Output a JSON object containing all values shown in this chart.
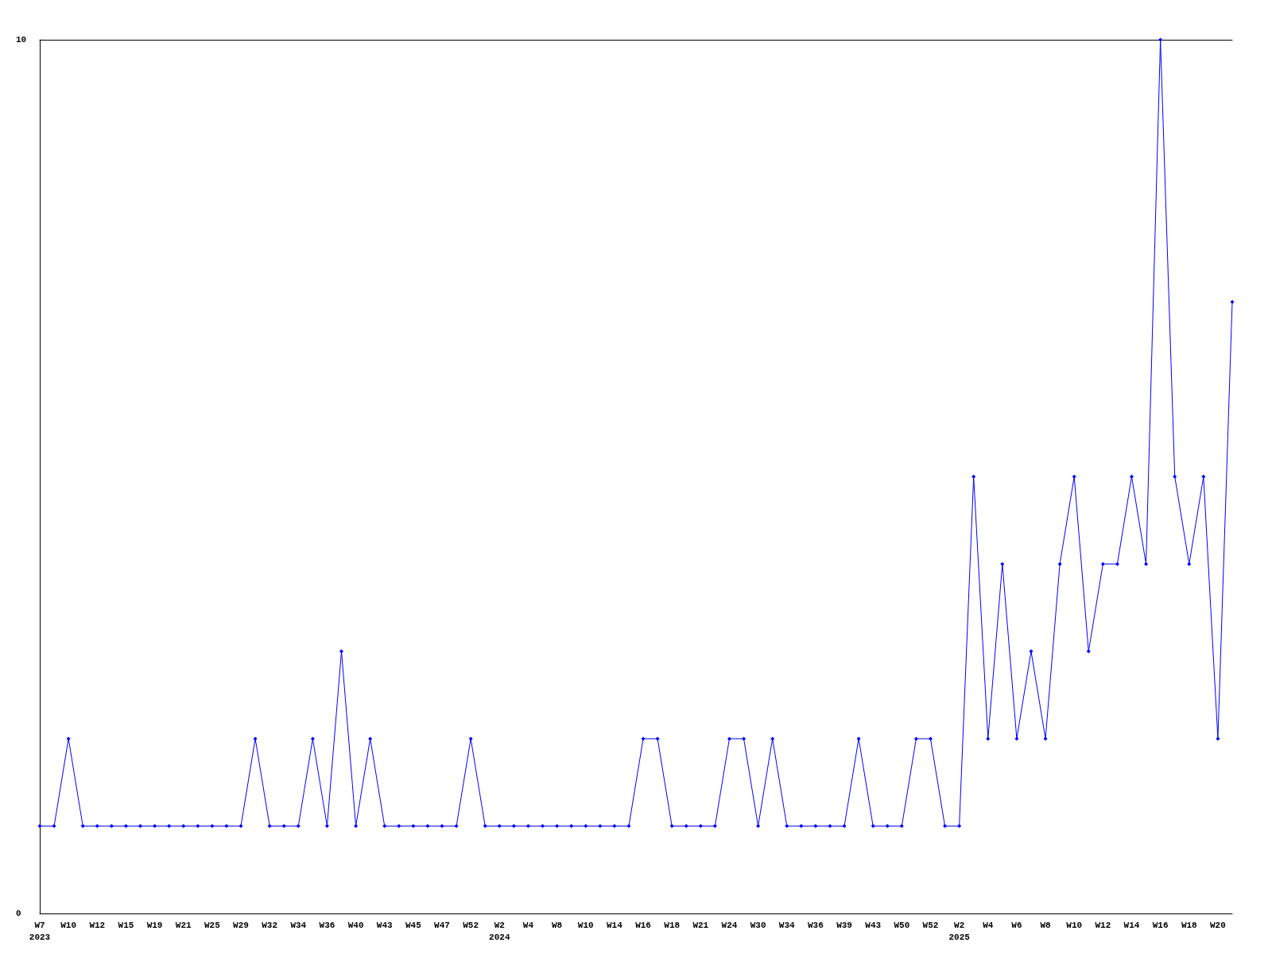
{
  "chart_data": {
    "type": "line",
    "categories": [
      "W7\n2023",
      null,
      "W10",
      null,
      "W12",
      null,
      "W15",
      null,
      "W19",
      null,
      "W21",
      null,
      "W25",
      null,
      "W29",
      null,
      "W32",
      null,
      "W34",
      null,
      "W36",
      null,
      "W40",
      null,
      "W43",
      null,
      "W45",
      null,
      "W47",
      null,
      "W52",
      null,
      "W2\n2024",
      null,
      "W4",
      null,
      "W8",
      null,
      "W10",
      null,
      "W14",
      null,
      "W16",
      null,
      "W18",
      null,
      "W21",
      null,
      "W24",
      null,
      "W30",
      null,
      "W34",
      null,
      "W36",
      null,
      "W39",
      null,
      "W43",
      null,
      "W50",
      null,
      "W52",
      null,
      "W2\n2025",
      null,
      "W4",
      null,
      "W6",
      null,
      "W8",
      null,
      "W10",
      null,
      "W12",
      null,
      "W14",
      null,
      "W16",
      null,
      "W18",
      null,
      "W20",
      null
    ],
    "series": [
      {
        "color": "#0000ff",
        "values": [
          1,
          1,
          2,
          1,
          1,
          1,
          1,
          1,
          1,
          1,
          1,
          1,
          1,
          1,
          1,
          2,
          1,
          1,
          1,
          2,
          1,
          3,
          1,
          2,
          1,
          1,
          1,
          1,
          1,
          1,
          2,
          1,
          1,
          1,
          1,
          1,
          1,
          1,
          1,
          1,
          1,
          1,
          2,
          2,
          1,
          1,
          1,
          1,
          2,
          2,
          1,
          2,
          1,
          1,
          1,
          1,
          1,
          2,
          1,
          1,
          1,
          2,
          2,
          1,
          1,
          5,
          2,
          4,
          2,
          3,
          2,
          4,
          5,
          3,
          4,
          4,
          5,
          4,
          10,
          5,
          4,
          5,
          2,
          7
        ]
      }
    ],
    "ylim": [
      0,
      10
    ],
    "yticks": [
      0,
      10
    ],
    "marker": "diamond",
    "line_style": "solid"
  }
}
